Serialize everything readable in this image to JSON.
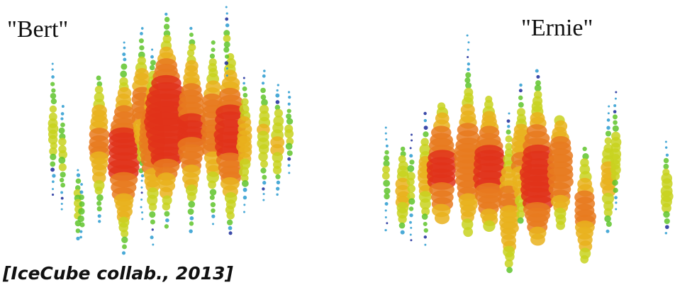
{
  "labels": {
    "left": "\"Bert\"",
    "right": "\"Ernie\""
  },
  "citation": "[IceCube collab., 2013]"
}
